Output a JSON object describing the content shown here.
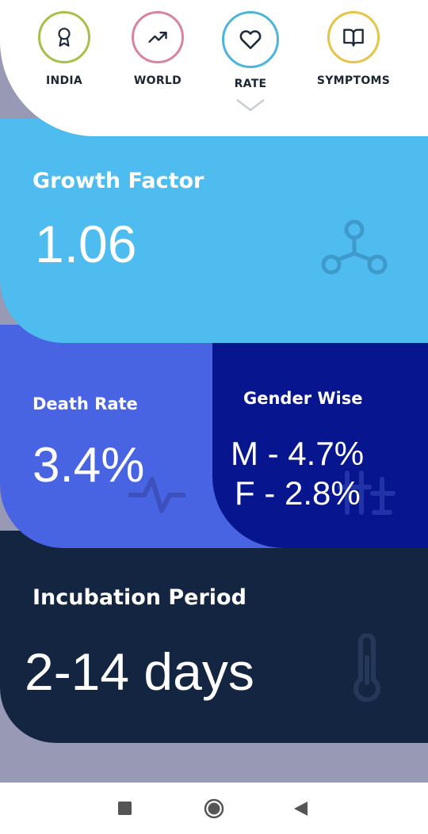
{
  "nav": {
    "items": [
      {
        "label": "INDIA",
        "icon": "award-icon",
        "color": "#a7c04a"
      },
      {
        "label": "WORLD",
        "icon": "trending-up-icon",
        "color": "#d7849c"
      },
      {
        "label": "RATE",
        "icon": "heart-icon",
        "color": "#4cb5db"
      },
      {
        "label": "SYMPTOMS",
        "icon": "book-icon",
        "color": "#e7c348"
      }
    ],
    "selected": "RATE"
  },
  "growth": {
    "title": "Growth Factor",
    "value": "1.06",
    "icon": "network-icon"
  },
  "death_rate": {
    "title": "Death Rate",
    "value": "3.4%",
    "icon": "pulse-icon"
  },
  "gender": {
    "title": "Gender Wise",
    "male": "M - 4.7%",
    "female": "F - 2.8%",
    "icon": "gender-icon"
  },
  "incubation": {
    "title": "Incubation Period",
    "value": "2-14 days",
    "icon": "thermometer-icon"
  },
  "colors": {
    "growth": "#4fbcef",
    "death": "#4864e2",
    "gender": "#07168e",
    "incubation": "#142541",
    "bottom": "#9799b5"
  },
  "system_nav": [
    "square-icon",
    "home-circle-icon",
    "back-triangle-icon"
  ]
}
